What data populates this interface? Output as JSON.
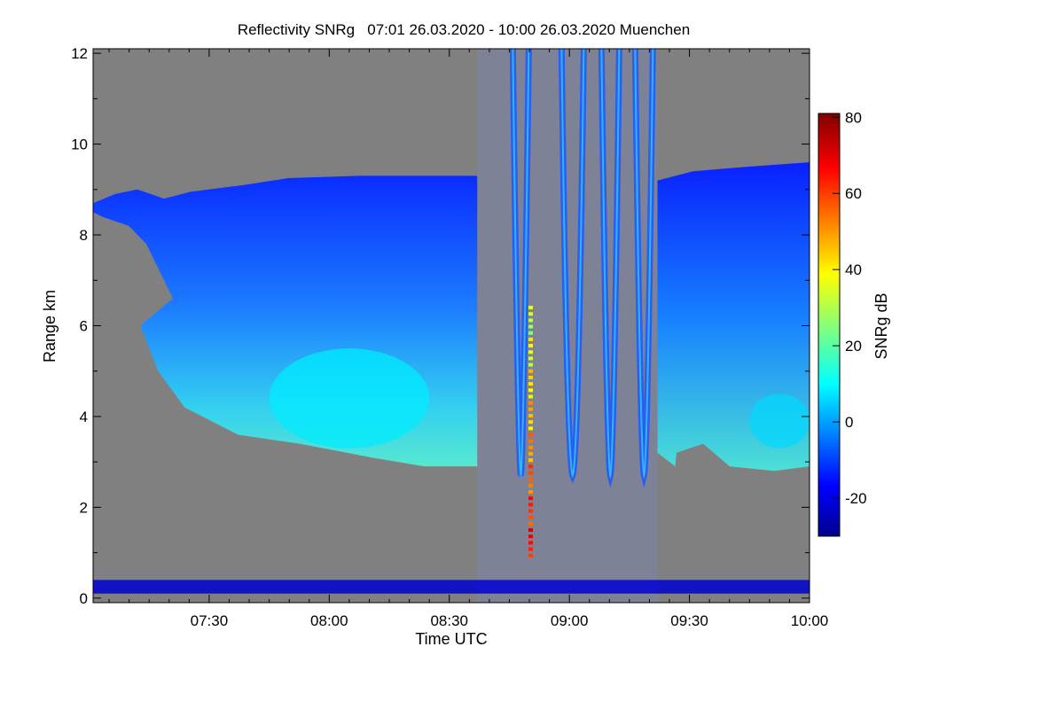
{
  "chart_data": {
    "type": "heatmap",
    "title": "Reflectivity SNRg   07:01 26.03.2020 - 10:00 26.03.2020 Muenchen",
    "xlabel": "Time UTC",
    "ylabel": "Range km",
    "xlim": [
      "07:01",
      "10:00"
    ],
    "ylim": [
      -0.1,
      12.1
    ],
    "x_ticks": [
      "07:30",
      "08:00",
      "08:30",
      "09:00",
      "09:30",
      "10:00"
    ],
    "x_tick_minutes": [
      450,
      480,
      510,
      540,
      570,
      600
    ],
    "y_ticks": [
      "0",
      "2",
      "4",
      "6",
      "8",
      "10",
      "12"
    ],
    "y_tick_values": [
      0,
      2,
      4,
      6,
      8,
      10,
      12
    ],
    "colorbar": {
      "label": "SNRg dB",
      "range": [
        -30,
        81
      ],
      "ticks": [
        "-20",
        "0",
        "20",
        "40",
        "60",
        "80"
      ],
      "tick_values": [
        -20,
        0,
        20,
        40,
        60,
        80
      ],
      "colormap": "jet"
    },
    "background_color": "#808080",
    "regions": [
      {
        "name": "upper-cloud-deck",
        "time": [
          "07:01",
          "08:37"
        ],
        "range_km": [
          2.9,
          9.3
        ],
        "snr_db": -12
      },
      {
        "name": "lower-cloud-core",
        "time": [
          "07:45",
          "08:25"
        ],
        "range_km": [
          3.3,
          5.5
        ],
        "snr_db": 8
      },
      {
        "name": "scanning-period",
        "time": [
          "08:37",
          "09:22"
        ],
        "range_km": [
          -0.1,
          12.1
        ],
        "snr_db": -20
      },
      {
        "name": "strong-vertical-echo",
        "time": [
          "08:50",
          "08:51"
        ],
        "range_km": [
          0.9,
          6.5
        ],
        "snr_db": 60
      },
      {
        "name": "late-cloud-deck",
        "time": [
          "09:22",
          "10:00"
        ],
        "range_km": [
          2.8,
          9.6
        ],
        "snr_db": -10
      },
      {
        "name": "late-cloud-core",
        "time": [
          "09:45",
          "10:00"
        ],
        "range_km": [
          3.3,
          4.5
        ],
        "snr_db": 6
      },
      {
        "name": "near-ground-layer",
        "time": [
          "07:01",
          "10:00"
        ],
        "range_km": [
          0.1,
          0.4
        ],
        "snr_db": -22
      }
    ]
  }
}
